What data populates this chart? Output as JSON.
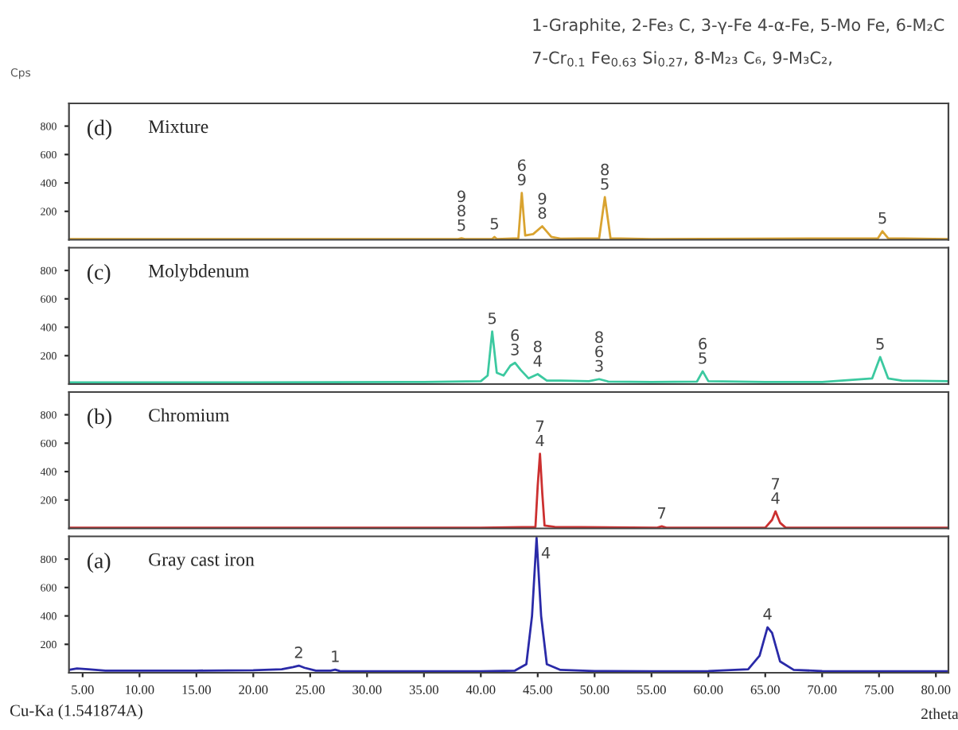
{
  "chart_data": [
    {
      "type": "line",
      "title": "(d)",
      "subtitle": "Mixture",
      "ylabel": "Cps",
      "xlim": [
        3.8,
        81.1
      ],
      "ylim": [
        0,
        960
      ],
      "yticks": [
        200,
        400,
        600,
        800
      ],
      "tick_labels": "y",
      "grid": false,
      "legend": false,
      "series": [
        {
          "color": "#d9a330",
          "x": [
            3.8,
            30,
            38,
            38.3,
            38.6,
            41,
            41.2,
            41.4,
            43.3,
            43.6,
            43.9,
            44.6,
            45.4,
            46.2,
            47,
            50.4,
            50.9,
            51.4,
            55,
            74.9,
            75.3,
            75.8,
            81.1
          ],
          "values": [
            5,
            5,
            5,
            10,
            5,
            5,
            20,
            5,
            10,
            330,
            30,
            40,
            95,
            20,
            8,
            10,
            300,
            10,
            5,
            10,
            60,
            10,
            5
          ]
        }
      ],
      "annotations": [
        "1-Graphite, 2-Fe₃ C, 3-γ-Fe 4-α-Fe, 5-Mo Fe, 6-M₂C",
        "7-Cr$_{0.1}$ Fe$_{0.63}$ Si$_{0.27}$, 8-M₂₃ C₆, 9-M₃C₂,",
        {
          "text": "9\n8\n5",
          "x": 38.3,
          "y": 10
        },
        {
          "text": "5",
          "x": 41.2,
          "y": 20
        },
        {
          "text": "6\n9",
          "x": 43.6,
          "y": 330
        },
        {
          "text": "9\n8",
          "x": 45.4,
          "y": 95
        },
        {
          "text": "8\n5",
          "x": 50.9,
          "y": 300
        },
        {
          "text": "5",
          "x": 75.3,
          "y": 60
        }
      ]
    },
    {
      "type": "line",
      "title": "(c)",
      "subtitle": "Molybdenum",
      "xlim": [
        3.8,
        81.1
      ],
      "ylim": [
        0,
        960
      ],
      "yticks": [
        200,
        400,
        600,
        800
      ],
      "tick_labels": "y",
      "grid": false,
      "legend": false,
      "series": [
        {
          "color": "#3cc9a0",
          "x": [
            3.8,
            20,
            35,
            40,
            40.6,
            41.0,
            41.4,
            42.0,
            42.6,
            43.0,
            43.5,
            44.2,
            45.0,
            45.8,
            47,
            49.5,
            50.4,
            51.2,
            55,
            59,
            59.5,
            60,
            65,
            70,
            74.4,
            75.1,
            75.8,
            77,
            81.1
          ],
          "values": [
            12,
            12,
            15,
            20,
            60,
            370,
            80,
            60,
            130,
            150,
            100,
            40,
            70,
            25,
            25,
            20,
            35,
            18,
            15,
            18,
            90,
            20,
            15,
            15,
            40,
            190,
            40,
            25,
            20
          ]
        }
      ],
      "annotations": [
        {
          "text": "5",
          "x": 41.0,
          "y": 370
        },
        {
          "text": "6\n3",
          "x": 43.0,
          "y": 150
        },
        {
          "text": "8\n4",
          "x": 45.0,
          "y": 70
        },
        {
          "text": "8\n6\n3",
          "x": 50.4,
          "y": 35
        },
        {
          "text": "6\n5",
          "x": 59.5,
          "y": 90
        },
        {
          "text": "5",
          "x": 75.1,
          "y": 190
        }
      ]
    },
    {
      "type": "line",
      "title": "(b)",
      "subtitle": "Chromium",
      "xlim": [
        3.8,
        81.1
      ],
      "ylim": [
        0,
        960
      ],
      "yticks": [
        200,
        400,
        600,
        800
      ],
      "tick_labels": "y",
      "grid": false,
      "legend": false,
      "series": [
        {
          "color": "#cc3030",
          "x": [
            3.8,
            20,
            40,
            44.8,
            45.0,
            45.2,
            45.4,
            45.6,
            46.5,
            55.5,
            55.9,
            56.3,
            65,
            65.6,
            65.9,
            66.3,
            66.8,
            81.1
          ],
          "values": [
            5,
            5,
            5,
            10,
            300,
            525,
            250,
            20,
            10,
            5,
            15,
            5,
            5,
            60,
            120,
            40,
            5,
            5
          ]
        }
      ],
      "annotations": [
        {
          "text": "7\n4",
          "x": 45.2,
          "y": 525
        },
        {
          "text": "7",
          "x": 55.9,
          "y": 15
        },
        {
          "text": "7\n4",
          "x": 65.9,
          "y": 120
        }
      ]
    },
    {
      "type": "line",
      "title": "(a)",
      "subtitle": "Gray cast iron",
      "xlabel": "2theta",
      "xlim": [
        3.8,
        81.1
      ],
      "ylim": [
        0,
        960
      ],
      "yticks": [
        200,
        400,
        600,
        800
      ],
      "xticks": [
        {
          "value": 5,
          "label": "5.00"
        },
        {
          "value": 10,
          "label": "10.00"
        },
        {
          "value": 15,
          "label": "15.00"
        },
        {
          "value": 20,
          "label": "20.00"
        },
        {
          "value": 25,
          "label": "25.00"
        },
        {
          "value": 30,
          "label": "30.00"
        },
        {
          "value": 35,
          "label": "35.00"
        },
        {
          "value": 40,
          "label": "40.00"
        },
        {
          "value": 45,
          "label": "45.00"
        },
        {
          "value": 50,
          "label": "50.00"
        },
        {
          "value": 55,
          "label": "55.00"
        },
        {
          "value": 60,
          "label": "60.00"
        },
        {
          "value": 65,
          "label": "65.00"
        },
        {
          "value": 70,
          "label": "70.00"
        },
        {
          "value": 75,
          "label": "75.00"
        },
        {
          "value": 80,
          "label": "80.00"
        }
      ],
      "grid": false,
      "legend": false,
      "series": [
        {
          "color": "#2a2aa8",
          "x": [
            3.8,
            4.5,
            5.5,
            7,
            10,
            15,
            20,
            22.5,
            23.5,
            24,
            24.5,
            25.5,
            26.8,
            27.2,
            27.6,
            30,
            35,
            40,
            43,
            44,
            44.5,
            44.9,
            45.3,
            45.8,
            47,
            50,
            55,
            60,
            63.5,
            64.5,
            65.2,
            65.6,
            66.3,
            67.5,
            70,
            75,
            81.1
          ],
          "values": [
            20,
            30,
            25,
            15,
            15,
            15,
            18,
            25,
            40,
            50,
            35,
            15,
            15,
            22,
            12,
            10,
            10,
            10,
            15,
            60,
            400,
            950,
            400,
            60,
            20,
            12,
            10,
            12,
            25,
            120,
            320,
            280,
            80,
            20,
            12,
            10,
            10
          ]
        }
      ],
      "annotations": [
        "Cu-Ka (1.541874A)",
        {
          "text": "2",
          "x": 24,
          "y": 50
        },
        {
          "text": "1",
          "x": 27.2,
          "y": 22
        },
        {
          "text": "4",
          "x": 44.9,
          "y": 950
        },
        {
          "text": "4",
          "x": 65.2,
          "y": 320
        }
      ]
    }
  ]
}
